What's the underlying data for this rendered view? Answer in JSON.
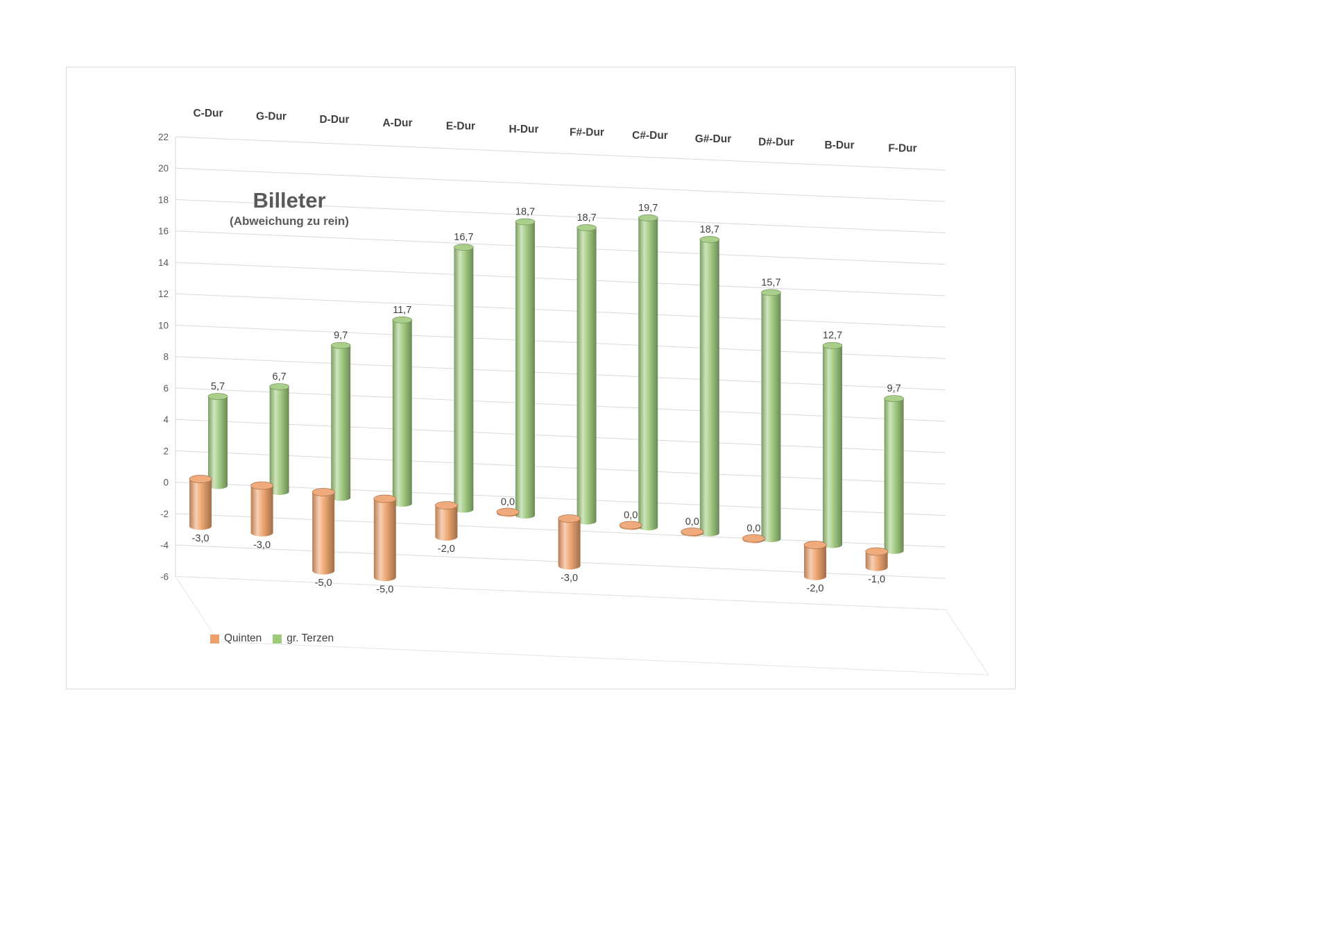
{
  "chart_data": {
    "type": "bar",
    "style": "3d-cylinder",
    "title": "Billeter",
    "subtitle": "(Abweichung zu rein)",
    "categories": [
      "C-Dur",
      "G-Dur",
      "D-Dur",
      "A-Dur",
      "E-Dur",
      "H-Dur",
      "F#-Dur",
      "C#-Dur",
      "G#-Dur",
      "D#-Dur",
      "B-Dur",
      "F-Dur"
    ],
    "series": [
      {
        "name": "Quinten",
        "color": "#EDA069",
        "values": [
          -3.0,
          -3.0,
          -5.0,
          -5.0,
          -2.0,
          0.0,
          -3.0,
          0.0,
          0.0,
          0.0,
          -2.0,
          -1.0
        ]
      },
      {
        "name": "gr. Terzen",
        "color": "#9DC97B",
        "values": [
          5.7,
          6.7,
          9.7,
          11.7,
          16.7,
          18.7,
          18.7,
          19.7,
          18.7,
          15.7,
          12.7,
          9.7
        ]
      }
    ],
    "ylim": [
      -6,
      22
    ],
    "ytick_step": 2,
    "yticks": [
      22,
      20,
      18,
      16,
      14,
      12,
      10,
      8,
      6,
      4,
      2,
      0,
      -2,
      -4,
      -6
    ],
    "grid": true,
    "legend_position": "bottom-left",
    "decimal_separator": ",",
    "label_decimals": 1,
    "colors": {
      "gridline": "#d9d9d9",
      "axis_text": "#595959",
      "label_text": "#3f3f3f",
      "title_text": "#595959"
    }
  }
}
